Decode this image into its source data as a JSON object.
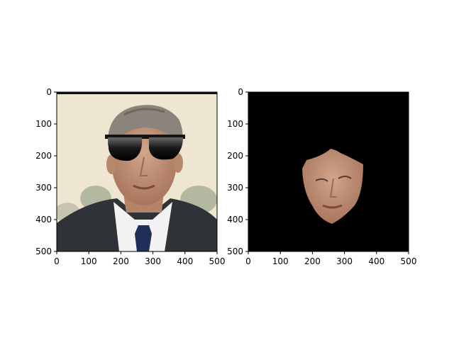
{
  "figure": {
    "background": "#ffffff"
  },
  "chart_data": [
    {
      "type": "image",
      "title": "",
      "xlabel": "",
      "ylabel": "",
      "xlim": [
        0,
        500
      ],
      "ylim": [
        500,
        0
      ],
      "xticks": [
        0,
        100,
        200,
        300,
        400,
        500
      ],
      "yticks": [
        0,
        100,
        200,
        300,
        400,
        500
      ],
      "xtick_labels": [
        "0",
        "100",
        "200",
        "300",
        "400",
        "500"
      ],
      "ytick_labels": [
        "0",
        "100",
        "200",
        "300",
        "400",
        "500"
      ],
      "content": "portrait of man in suit with cartoon sunglasses overlay",
      "colors": {
        "background": "#efe6d2",
        "hair": "#8a847a",
        "suit": "#2f3338",
        "shirt": "#f2f2f2",
        "tie": "#1f2f5a",
        "skin": "#c99a7d",
        "glasses": "#141414"
      }
    },
    {
      "type": "image",
      "title": "",
      "xlabel": "",
      "ylabel": "",
      "xlim": [
        0,
        500
      ],
      "ylim": [
        500,
        0
      ],
      "xticks": [
        0,
        100,
        200,
        300,
        400,
        500
      ],
      "yticks": [
        0,
        100,
        200,
        300,
        400,
        500
      ],
      "xtick_labels": [
        "0",
        "100",
        "200",
        "300",
        "400",
        "500"
      ],
      "ytick_labels": [
        "0",
        "100",
        "200",
        "300",
        "400",
        "500"
      ],
      "content": "masked face region on black background",
      "colors": {
        "background": "#000000",
        "skin": "#c99a7d"
      }
    }
  ]
}
